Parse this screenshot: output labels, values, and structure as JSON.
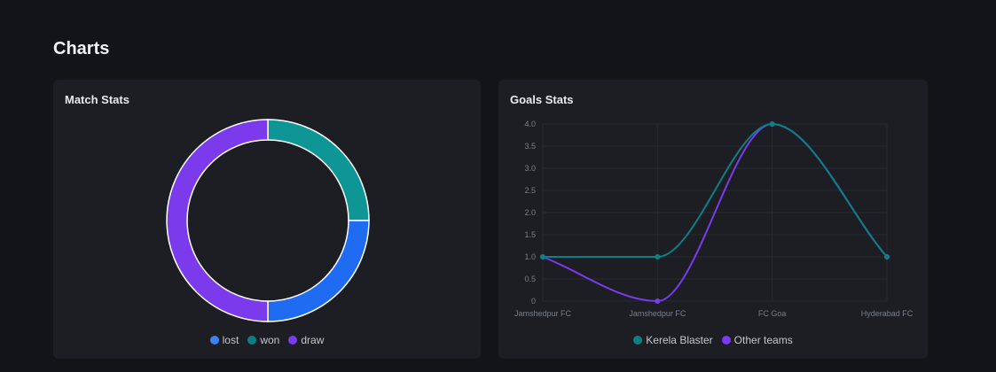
{
  "page": {
    "title": "Charts"
  },
  "chart_data": [
    {
      "type": "pie",
      "variant": "doughnut",
      "title": "Match Stats",
      "categories": [
        "lost",
        "won",
        "draw"
      ],
      "values": [
        1,
        1,
        2
      ],
      "colors": [
        "#1f6bf2",
        "#0e9696",
        "#7c3aed"
      ],
      "legend_colors": [
        "#3b82f6",
        "#0f7f86",
        "#7c3aed"
      ],
      "legend": "bottom"
    },
    {
      "type": "line",
      "title": "Goals Stats",
      "categories": [
        "Jamshedpur FC",
        "Jamshedpur FC",
        "FC Goa",
        "Hyderabad FC"
      ],
      "series": [
        {
          "name": "Kerela Blaster",
          "values": [
            1,
            1,
            4,
            1
          ],
          "color": "#0f7f86"
        },
        {
          "name": "Other teams",
          "values": [
            1,
            0,
            4,
            1
          ],
          "color": "#7c3aed"
        }
      ],
      "yticks": [
        "0",
        "0.5",
        "1.0",
        "1.5",
        "2.0",
        "2.5",
        "3.0",
        "3.5",
        "4.0"
      ],
      "ylim": [
        0,
        4
      ],
      "smooth": true,
      "legend": "bottom"
    }
  ]
}
